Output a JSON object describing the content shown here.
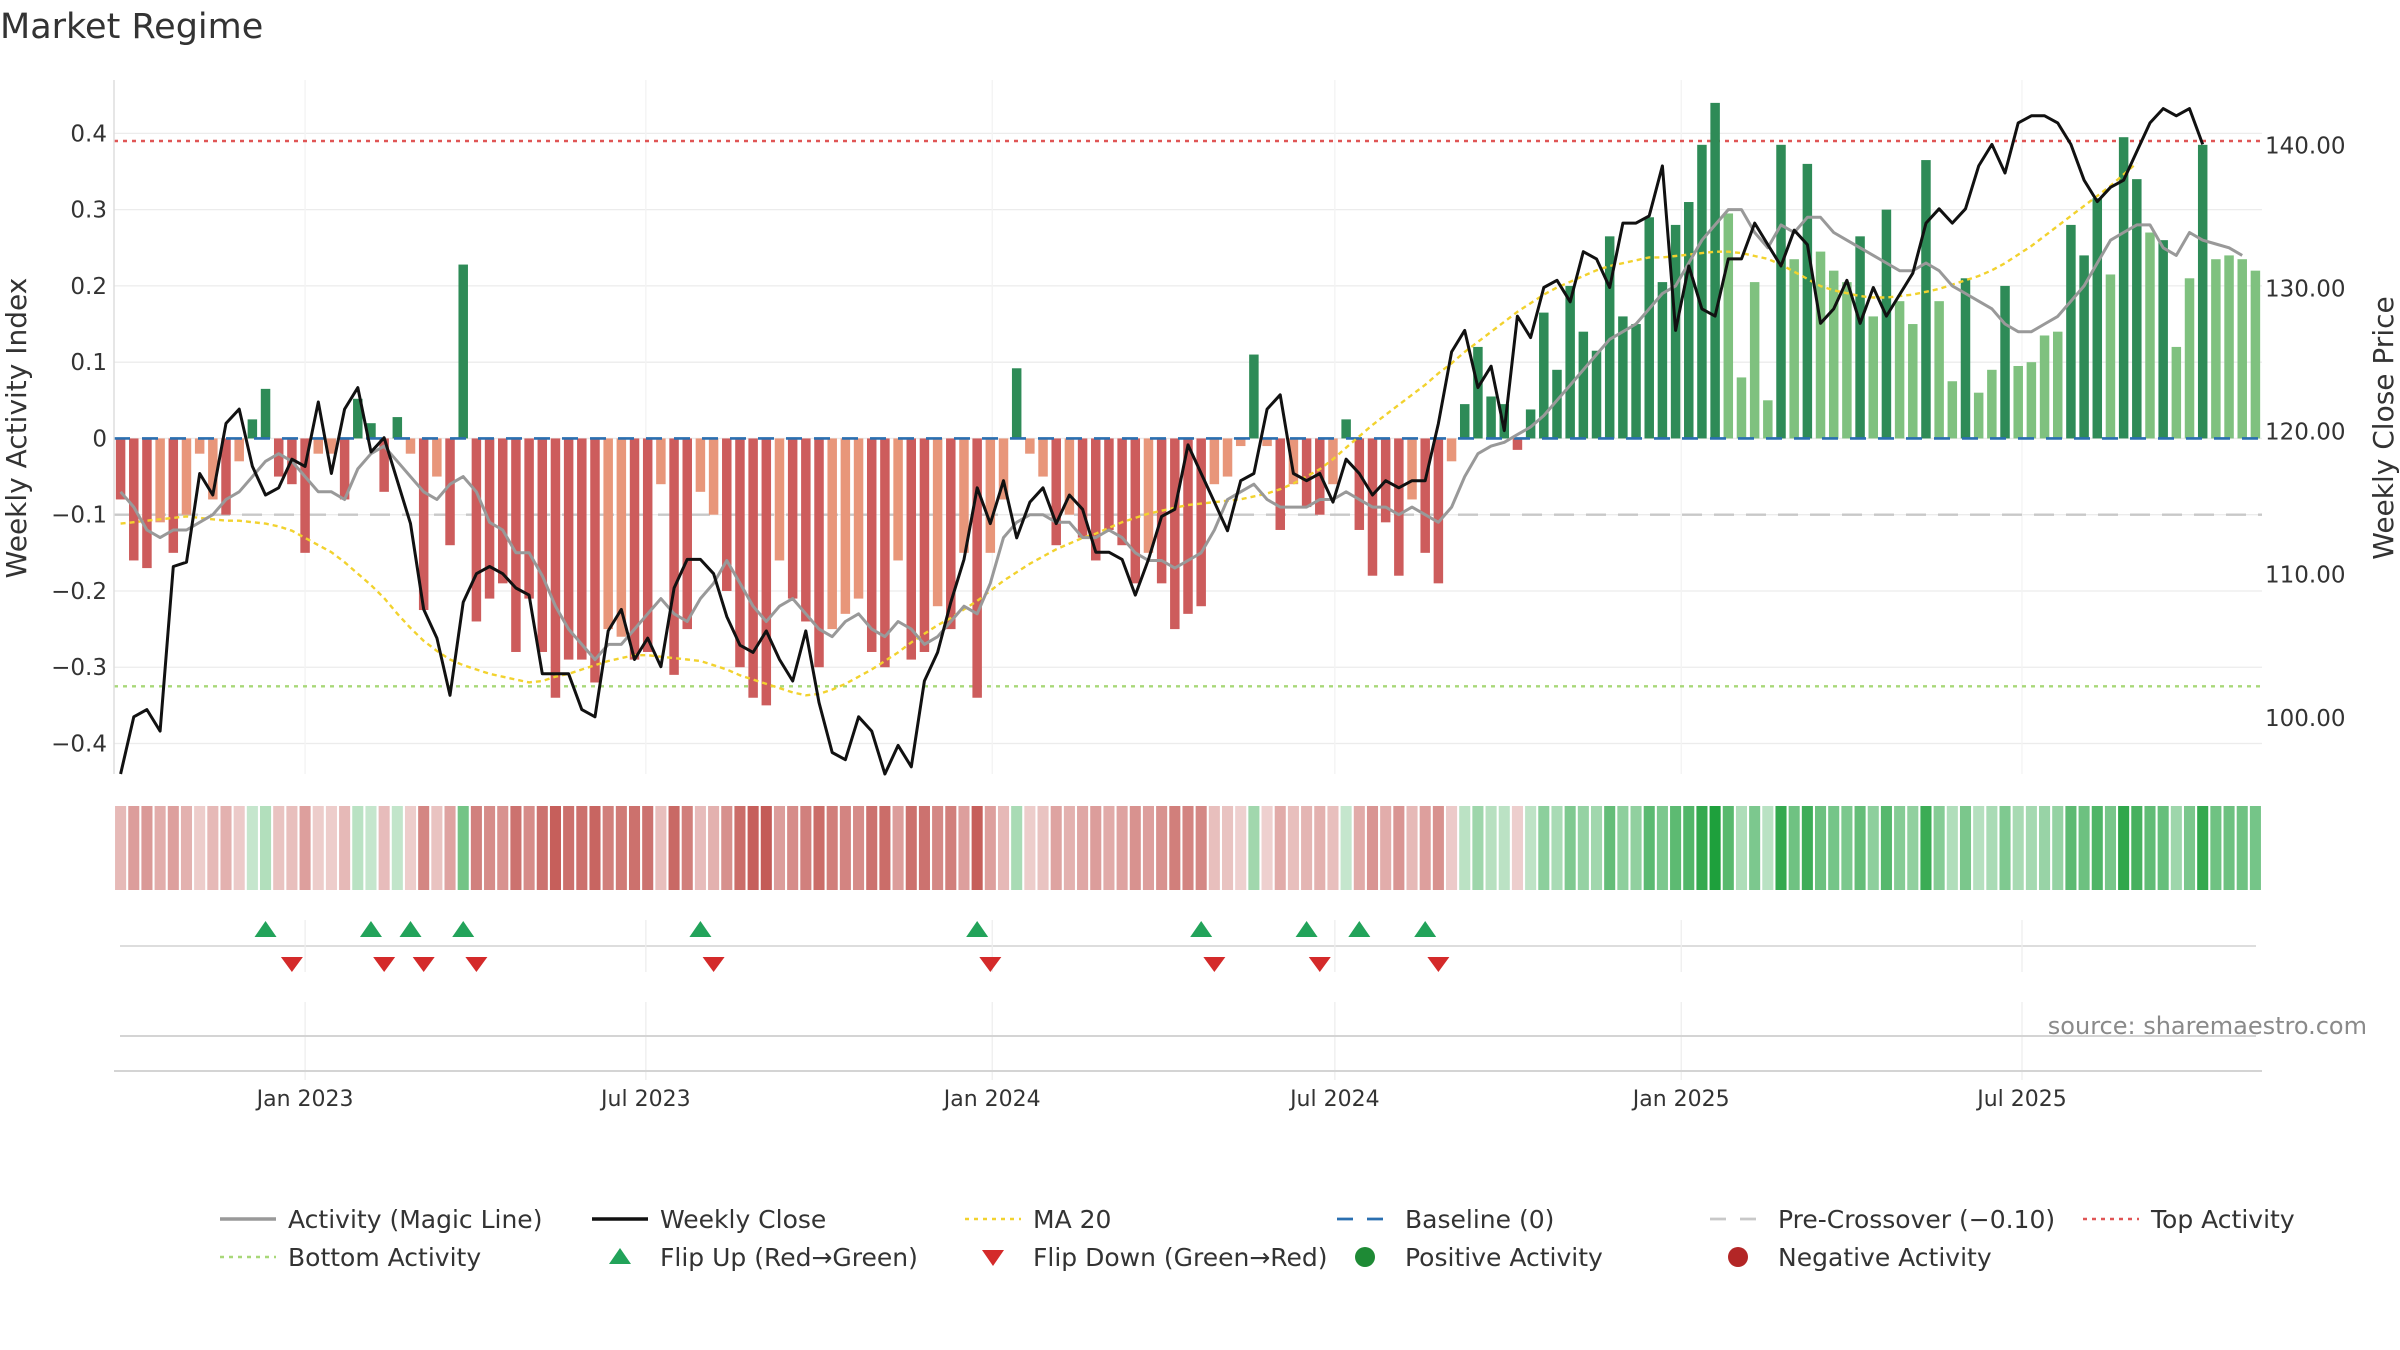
{
  "chart_data": {
    "type": "bar",
    "title": "Market Regime",
    "ylabel": "Weekly Activity Index",
    "y2label": "Weekly Close Price",
    "ylim": [
      -0.44,
      0.47
    ],
    "y2lim": [
      96.0,
      144.5
    ],
    "y_ticks": [
      0.4,
      0.3,
      0.2,
      0.1,
      0,
      -0.1,
      -0.2,
      -0.3,
      -0.4
    ],
    "y_tick_labels": [
      "0.4",
      "0.3",
      "0.2",
      "0.1",
      "0",
      "−0.1",
      "−0.2",
      "−0.3",
      "−0.4"
    ],
    "y2_ticks": [
      140,
      130,
      120,
      110,
      100
    ],
    "y2_tick_labels": [
      "140.00",
      "130.00",
      "120.00",
      "110.00",
      "100.00"
    ],
    "x_ticks": [
      "2023-01-01",
      "2023-07-01",
      "2024-01-01",
      "2024-07-01",
      "2025-01-01",
      "2025-07-01"
    ],
    "x_tick_labels": [
      "Jan 2023",
      "Jul 2023",
      "Jan 2024",
      "Jul 2024",
      "Jan 2025",
      "Jul 2025"
    ],
    "start_date": "2022-09-25",
    "week_days": 7,
    "reference_lines": {
      "baseline": 0,
      "pre_crossover": -0.1,
      "top_activity": 0.39,
      "bottom_activity": -0.325
    },
    "series": [
      {
        "name": "Weekly Activity Index",
        "values": [
          -0.08,
          -0.16,
          -0.17,
          -0.11,
          -0.15,
          -0.1,
          -0.02,
          -0.08,
          -0.1,
          -0.03,
          0.025,
          0.065,
          -0.05,
          -0.06,
          -0.15,
          -0.02,
          -0.02,
          -0.08,
          0.052,
          0.02,
          -0.07,
          0.028,
          -0.02,
          -0.225,
          -0.05,
          -0.14,
          0.228,
          -0.24,
          -0.21,
          -0.19,
          -0.28,
          -0.21,
          -0.28,
          -0.34,
          -0.29,
          -0.29,
          -0.32,
          -0.25,
          -0.26,
          -0.29,
          -0.28,
          -0.06,
          -0.31,
          -0.25,
          -0.07,
          -0.1,
          -0.2,
          -0.3,
          -0.34,
          -0.35,
          -0.16,
          -0.21,
          -0.24,
          -0.3,
          -0.25,
          -0.23,
          -0.21,
          -0.28,
          -0.3,
          -0.16,
          -0.29,
          -0.28,
          -0.22,
          -0.25,
          -0.15,
          -0.34,
          -0.15,
          -0.08,
          0.092,
          -0.02,
          -0.05,
          -0.14,
          -0.1,
          -0.13,
          -0.16,
          -0.12,
          -0.14,
          -0.19,
          -0.15,
          -0.19,
          -0.25,
          -0.23,
          -0.22,
          -0.06,
          -0.05,
          -0.01,
          0.11,
          -0.01,
          -0.12,
          -0.06,
          -0.09,
          -0.1,
          -0.06,
          0.025,
          -0.12,
          -0.18,
          -0.11,
          -0.18,
          -0.08,
          -0.15,
          -0.19,
          -0.03,
          0.045,
          0.12,
          0.055,
          0.045,
          -0.015,
          0.038,
          0.165,
          0.09,
          0.2,
          0.14,
          0.115,
          0.265,
          0.16,
          0.15,
          0.29,
          0.205,
          0.28,
          0.31,
          0.385,
          0.44,
          0.295,
          0.08,
          0.205,
          0.05,
          0.385,
          0.235,
          0.36,
          0.245,
          0.22,
          0.205,
          0.265,
          0.16,
          0.3,
          0.18,
          0.15,
          0.365,
          0.18,
          0.075,
          0.21,
          0.06,
          0.09,
          0.2,
          0.095,
          0.1,
          0.135,
          0.14,
          0.28,
          0.24,
          0.315,
          0.215,
          0.395,
          0.34,
          0.27,
          0.26,
          0.12,
          0.21,
          0.385,
          0.235,
          0.24,
          0.235,
          0.22
        ]
      },
      {
        "name": "Activity (Magic Line)",
        "values": [
          -0.07,
          -0.09,
          -0.12,
          -0.13,
          -0.12,
          -0.12,
          -0.11,
          -0.1,
          -0.08,
          -0.07,
          -0.05,
          -0.03,
          -0.02,
          -0.03,
          -0.05,
          -0.07,
          -0.07,
          -0.08,
          -0.04,
          -0.02,
          -0.01,
          -0.03,
          -0.05,
          -0.07,
          -0.08,
          -0.06,
          -0.05,
          -0.07,
          -0.11,
          -0.12,
          -0.15,
          -0.15,
          -0.18,
          -0.22,
          -0.25,
          -0.27,
          -0.29,
          -0.27,
          -0.27,
          -0.25,
          -0.23,
          -0.21,
          -0.23,
          -0.24,
          -0.21,
          -0.19,
          -0.16,
          -0.19,
          -0.22,
          -0.24,
          -0.22,
          -0.21,
          -0.23,
          -0.25,
          -0.26,
          -0.24,
          -0.23,
          -0.25,
          -0.26,
          -0.24,
          -0.25,
          -0.27,
          -0.26,
          -0.24,
          -0.22,
          -0.23,
          -0.19,
          -0.13,
          -0.11,
          -0.1,
          -0.1,
          -0.11,
          -0.11,
          -0.13,
          -0.13,
          -0.12,
          -0.13,
          -0.15,
          -0.16,
          -0.16,
          -0.17,
          -0.16,
          -0.15,
          -0.12,
          -0.08,
          -0.07,
          -0.06,
          -0.08,
          -0.09,
          -0.09,
          -0.09,
          -0.08,
          -0.08,
          -0.07,
          -0.08,
          -0.09,
          -0.09,
          -0.1,
          -0.09,
          -0.1,
          -0.11,
          -0.09,
          -0.05,
          -0.02,
          -0.01,
          -0.005,
          0.005,
          0.015,
          0.03,
          0.05,
          0.07,
          0.09,
          0.11,
          0.13,
          0.14,
          0.15,
          0.17,
          0.19,
          0.2,
          0.23,
          0.26,
          0.28,
          0.3,
          0.3,
          0.27,
          0.25,
          0.28,
          0.27,
          0.29,
          0.29,
          0.27,
          0.26,
          0.25,
          0.24,
          0.23,
          0.22,
          0.22,
          0.23,
          0.22,
          0.2,
          0.19,
          0.18,
          0.17,
          0.15,
          0.14,
          0.14,
          0.15,
          0.16,
          0.18,
          0.2,
          0.23,
          0.26,
          0.27,
          0.28,
          0.28,
          0.25,
          0.24,
          0.27,
          0.26,
          0.255,
          0.25,
          0.24
        ]
      },
      {
        "name": "Weekly Close",
        "values": [
          96.0,
          100.0,
          100.5,
          99.0,
          110.5,
          110.8,
          117.0,
          115.5,
          120.5,
          121.5,
          117.5,
          115.5,
          116.0,
          118.0,
          117.5,
          122.0,
          117.0,
          121.5,
          123.0,
          118.5,
          119.5,
          116.5,
          113.5,
          107.5,
          105.5,
          101.5,
          108.0,
          110.0,
          110.5,
          110.0,
          109.0,
          108.5,
          103.0,
          103.0,
          103.0,
          100.5,
          100.0,
          106.0,
          107.5,
          104.0,
          105.5,
          103.5,
          109.0,
          111.0,
          111.0,
          110.0,
          107.0,
          105.0,
          104.5,
          106.0,
          104.0,
          102.5,
          106.0,
          101.0,
          97.5,
          97.0,
          100.0,
          99.0,
          96.0,
          98.0,
          96.5,
          102.5,
          104.5,
          108.0,
          111.0,
          116.0,
          113.5,
          116.5,
          112.5,
          115.0,
          116.0,
          113.5,
          115.5,
          114.5,
          111.5,
          111.5,
          111.0,
          108.5,
          111.0,
          114.0,
          114.5,
          119.0,
          117.0,
          115.0,
          113.0,
          116.5,
          117.0,
          121.5,
          122.5,
          117.0,
          116.5,
          117.0,
          115.0,
          118.0,
          117.0,
          115.5,
          116.5,
          116.0,
          116.5,
          116.5,
          120.5,
          125.5,
          127.0,
          123.0,
          124.5,
          120.0,
          128.0,
          126.5,
          130.0,
          130.5,
          129.0,
          132.5,
          132.0,
          130.0,
          134.5,
          134.5,
          135.0,
          138.5,
          127.0,
          131.5,
          128.5,
          128.0,
          132.0,
          132.0,
          134.5,
          133.0,
          131.5,
          134.0,
          133.0,
          127.5,
          128.5,
          130.5,
          127.5,
          130.0,
          128.0,
          129.5,
          131.0,
          134.5,
          135.5,
          134.5,
          135.5,
          138.5,
          140.0,
          138.0,
          141.5,
          142.0,
          142.0,
          141.5,
          140.0,
          137.5,
          136.0,
          137.0,
          137.5,
          139.5,
          141.5,
          142.5,
          142.0,
          142.5,
          140.0
        ]
      },
      {
        "name": "MA 20",
        "values": [
          113.5,
          113.6,
          113.7,
          113.8,
          113.9,
          114.0,
          113.9,
          113.8,
          113.7,
          113.7,
          113.6,
          113.5,
          113.3,
          113.0,
          112.5,
          112.0,
          111.5,
          110.8,
          110.0,
          109.2,
          108.3,
          107.2,
          106.2,
          105.3,
          104.6,
          104.0,
          103.6,
          103.3,
          103.0,
          102.8,
          102.6,
          102.4,
          102.5,
          102.8,
          103.0,
          103.3,
          103.6,
          103.9,
          104.1,
          104.3,
          104.3,
          104.2,
          104.1,
          104.0,
          103.9,
          103.6,
          103.3,
          102.9,
          102.6,
          102.3,
          102.0,
          101.7,
          101.5,
          101.6,
          101.9,
          102.3,
          102.8,
          103.3,
          103.9,
          104.5,
          105.2,
          105.8,
          106.4,
          106.9,
          107.5,
          108.1,
          108.8,
          109.5,
          110.1,
          110.7,
          111.2,
          111.7,
          112.1,
          112.5,
          112.8,
          113.2,
          113.6,
          113.9,
          114.2,
          114.4,
          114.6,
          114.8,
          114.9,
          115.0,
          115.1,
          115.2,
          115.4,
          115.6,
          115.9,
          116.3,
          116.8,
          117.3,
          118.0,
          118.8,
          119.6,
          120.4,
          121.1,
          121.8,
          122.5,
          123.2,
          124.0,
          124.7,
          125.5,
          126.2,
          126.9,
          127.6,
          128.3,
          128.9,
          129.5,
          130.0,
          130.4,
          130.8,
          131.2,
          131.5,
          131.7,
          131.9,
          132.1,
          132.1,
          132.2,
          132.3,
          132.4,
          132.5,
          132.5,
          132.4,
          132.2,
          132.0,
          131.6,
          131.1,
          130.6,
          130.1,
          129.8,
          129.6,
          129.4,
          129.3,
          129.3,
          129.4,
          129.5,
          129.7,
          129.9,
          130.2,
          130.5,
          130.8,
          131.2,
          131.7,
          132.3,
          132.9,
          133.6,
          134.3,
          135.0,
          135.7,
          136.4,
          137.1,
          137.9,
          138.7
        ]
      }
    ],
    "flip_up_dates": [
      "2022-12-11",
      "2023-02-05",
      "2023-02-26",
      "2023-03-26",
      "2023-07-30",
      "2023-12-24",
      "2024-04-21",
      "2024-06-16",
      "2024-07-14",
      "2024-08-18"
    ],
    "flip_down_dates": [
      "2022-12-25",
      "2023-02-12",
      "2023-03-05",
      "2023-04-02",
      "2023-08-06",
      "2023-12-31",
      "2024-04-28",
      "2024-06-23",
      "2024-08-25"
    ],
    "legend": [
      {
        "label": "Activity (Magic Line)",
        "symbol": "line",
        "color": "#999999"
      },
      {
        "label": "Weekly Close",
        "symbol": "line",
        "color": "#111111"
      },
      {
        "label": "MA 20",
        "symbol": "dotted",
        "color": "#f2d22e"
      },
      {
        "label": "Baseline (0)",
        "symbol": "dashed",
        "color": "#2a6fb0"
      },
      {
        "label": "Pre-Crossover (−0.10)",
        "symbol": "dashed",
        "color": "#c8c8c8"
      },
      {
        "label": "Top Activity",
        "symbol": "dotted",
        "color": "#e05555"
      },
      {
        "label": "Bottom Activity",
        "symbol": "dotted",
        "color": "#a8d878"
      },
      {
        "label": "Flip Up (Red→Green)",
        "symbol": "triangle-up",
        "color": "#22a35a"
      },
      {
        "label": "Flip Down (Green→Red)",
        "symbol": "triangle-down",
        "color": "#d42a2a"
      },
      {
        "label": "Positive Activity",
        "symbol": "circle",
        "color": "#1e8a35"
      },
      {
        "label": "Negative Activity",
        "symbol": "circle",
        "color": "#b32626"
      }
    ],
    "source": "source: sharemaestro.com",
    "legend_placement": "bottom",
    "grid": true,
    "colors": {
      "positive_dark": "#2e8b57",
      "positive_light": "#7fc17f",
      "negative_dark": "#cd5c5c",
      "negative_light": "#e8967a"
    }
  }
}
